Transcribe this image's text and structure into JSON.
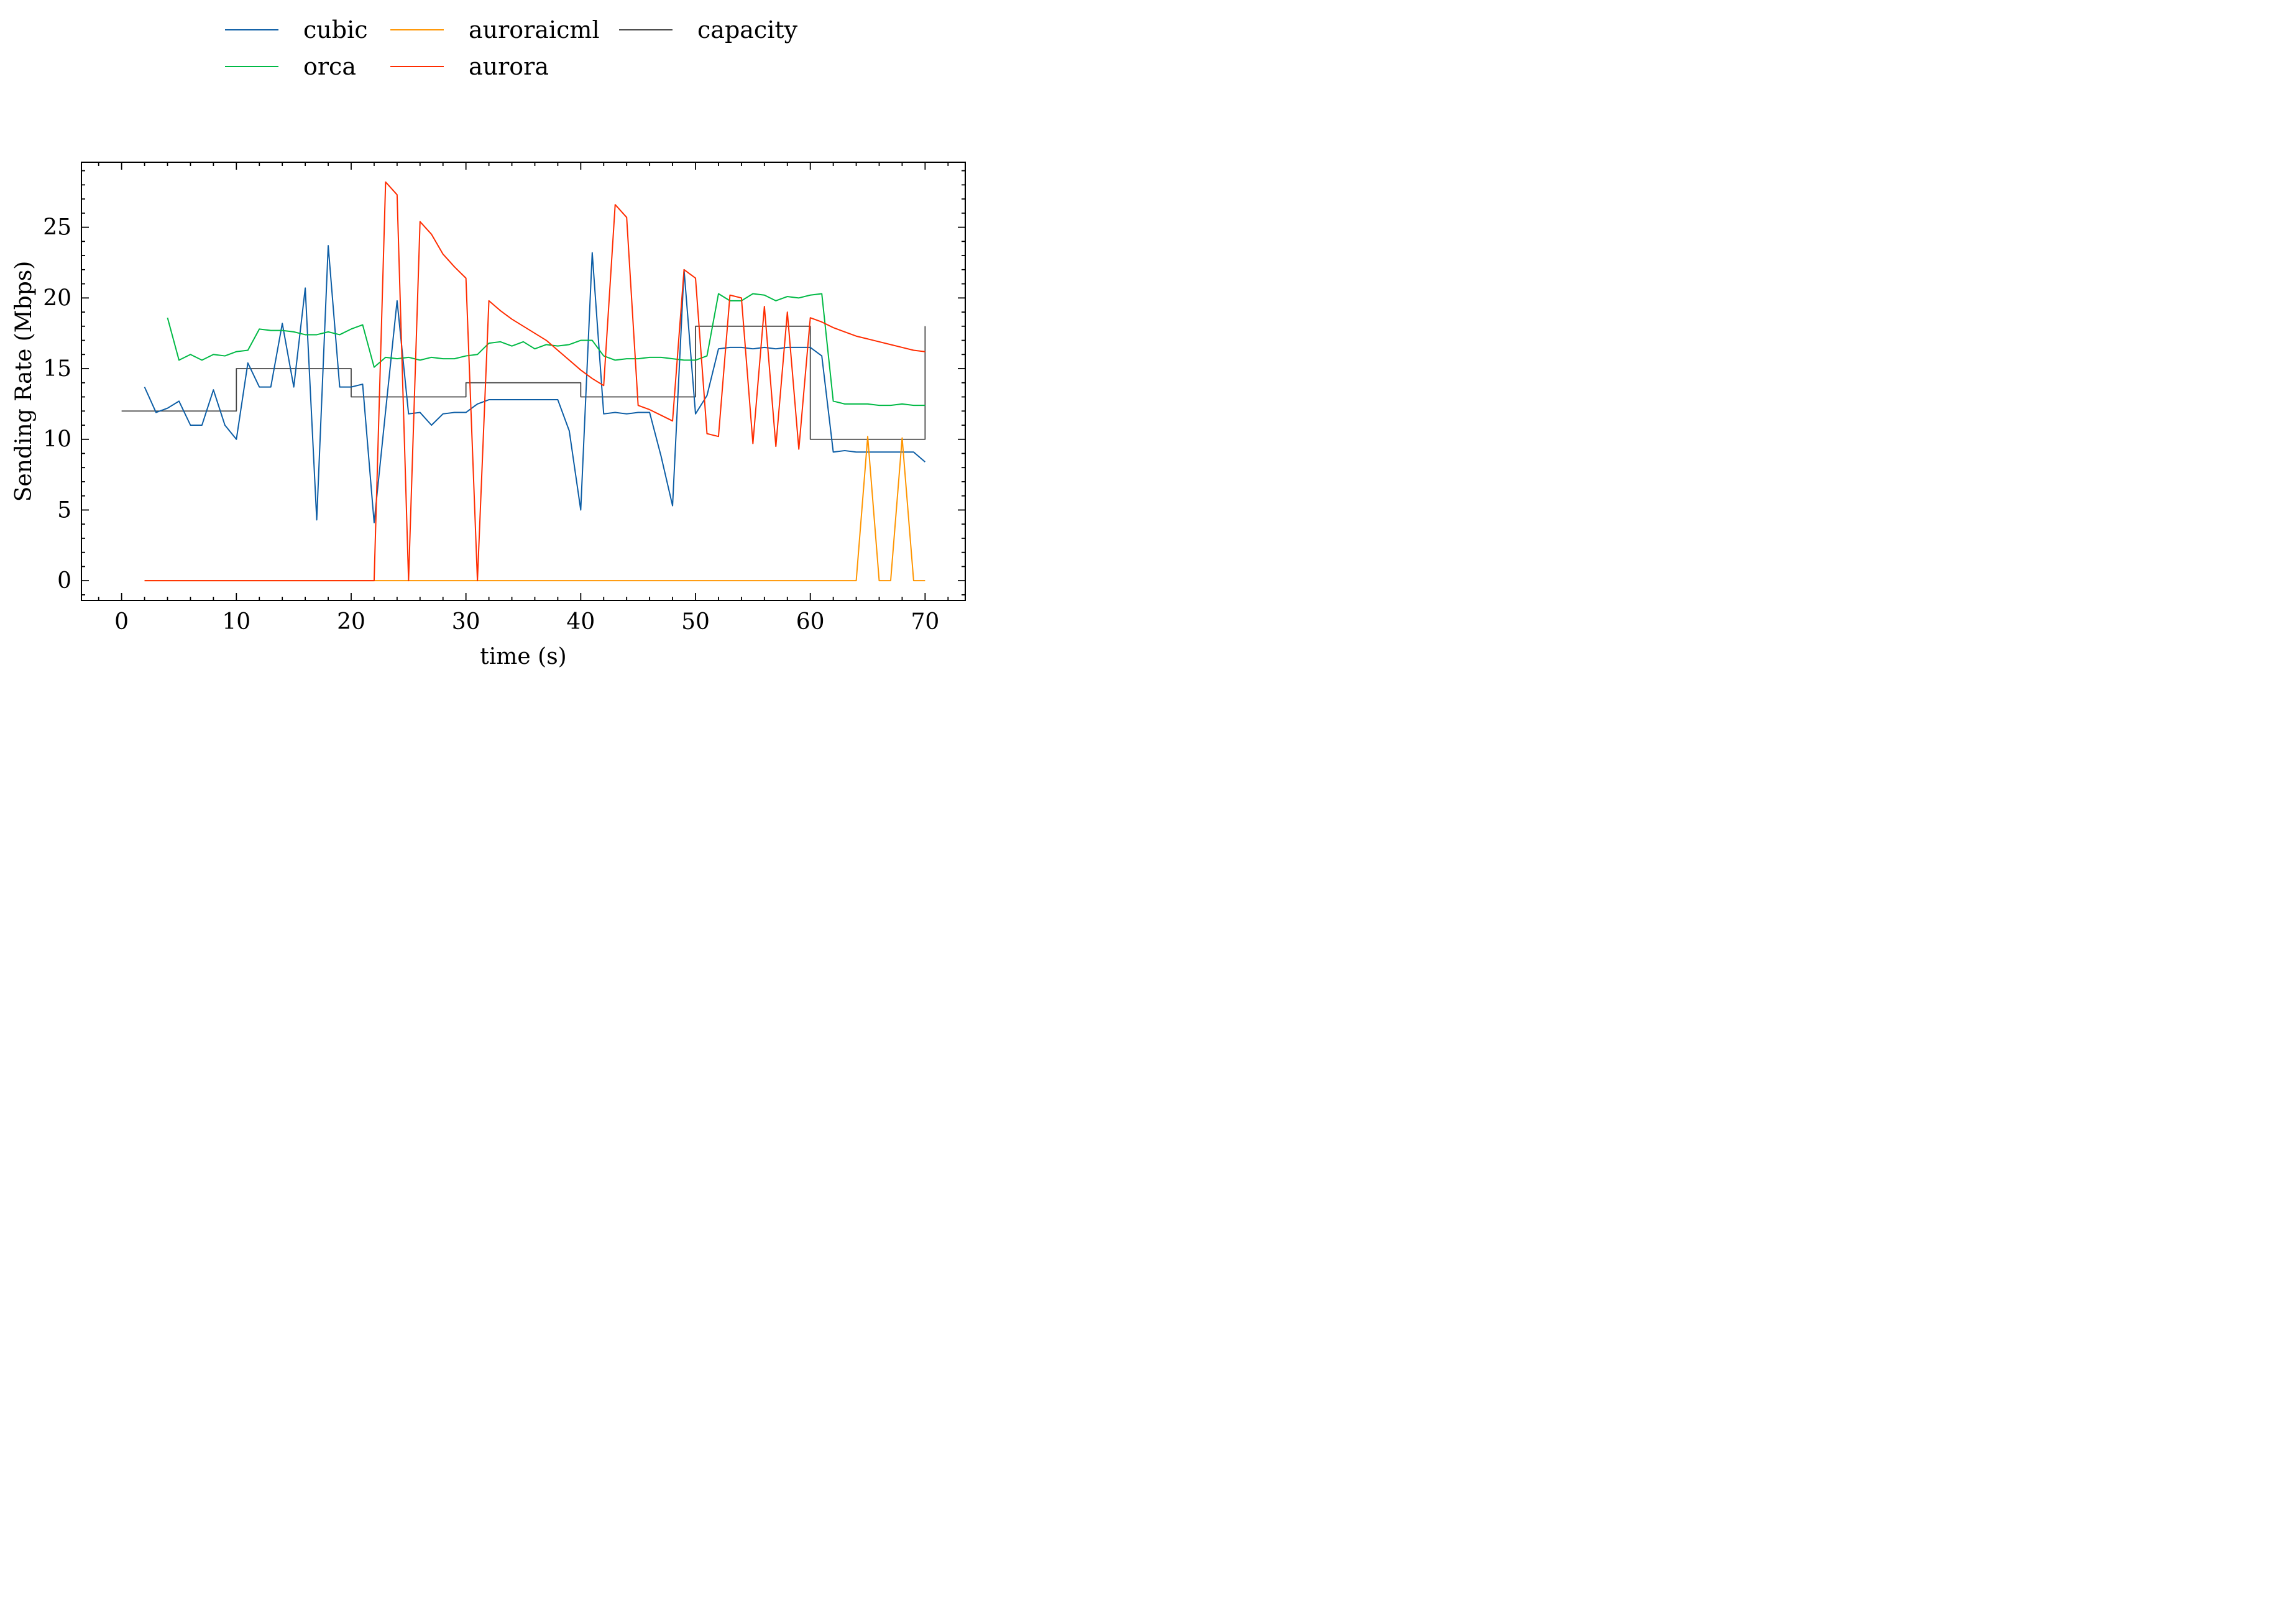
{
  "chart_data": {
    "type": "line",
    "title": "",
    "xlabel": "time (s)",
    "ylabel": "Sending Rate (Mbps)",
    "xlim": [
      -3.5,
      73.5
    ],
    "ylim": [
      -1.4,
      29.6
    ],
    "xticks": [
      0,
      10,
      20,
      30,
      40,
      50,
      60,
      70
    ],
    "xtick_labels": [
      "0",
      "10",
      "20",
      "30",
      "40",
      "50",
      "60",
      "70"
    ],
    "yticks": [
      0,
      5,
      10,
      15,
      20,
      25
    ],
    "ytick_labels": [
      "0",
      "5",
      "10",
      "15",
      "20",
      "25"
    ],
    "xminor_step": 2,
    "yminor_step": 1,
    "grid": false,
    "legend_position": "top-center, above plot",
    "series": [
      {
        "name": "cubic",
        "color": "#0C5DA5",
        "x": [
          2,
          3,
          4,
          5,
          6,
          7,
          8,
          9,
          10,
          11,
          12,
          13,
          14,
          15,
          16,
          17,
          18,
          19,
          20,
          21,
          22,
          23,
          24,
          25,
          26,
          27,
          28,
          29,
          30,
          31,
          32,
          33,
          34,
          35,
          36,
          37,
          38,
          39,
          40,
          41,
          42,
          43,
          44,
          45,
          46,
          47,
          48,
          49,
          50,
          51,
          52,
          53,
          54,
          55,
          56,
          57,
          58,
          59,
          60,
          61,
          62,
          63,
          64,
          65,
          66,
          67,
          68,
          69,
          70
        ],
        "y": [
          13.7,
          11.9,
          12.2,
          12.7,
          11.0,
          11.0,
          13.5,
          11.0,
          10.0,
          15.4,
          13.7,
          13.7,
          18.2,
          13.7,
          20.7,
          4.3,
          23.7,
          13.7,
          13.7,
          13.9,
          4.1,
          12.0,
          19.8,
          11.8,
          11.9,
          11.0,
          11.8,
          11.9,
          11.9,
          12.5,
          12.8,
          12.8,
          12.8,
          12.8,
          12.8,
          12.8,
          12.8,
          10.6,
          5.0,
          23.2,
          11.8,
          11.9,
          11.8,
          11.9,
          11.9,
          8.8,
          5.3,
          22.0,
          11.8,
          13.1,
          16.4,
          16.5,
          16.5,
          16.4,
          16.5,
          16.4,
          16.5,
          16.5,
          16.5,
          15.9,
          9.1,
          9.2,
          9.1,
          9.1,
          9.1,
          9.1,
          9.1,
          9.1,
          8.4
        ]
      },
      {
        "name": "orca",
        "color": "#00B945",
        "x": [
          4,
          5,
          6,
          7,
          8,
          9,
          10,
          11,
          12,
          13,
          14,
          15,
          16,
          17,
          18,
          19,
          20,
          21,
          22,
          23,
          24,
          25,
          26,
          27,
          28,
          29,
          30,
          31,
          32,
          33,
          34,
          35,
          36,
          37,
          38,
          39,
          40,
          41,
          42,
          43,
          44,
          45,
          46,
          47,
          48,
          49,
          50,
          51,
          52,
          53,
          54,
          55,
          56,
          57,
          58,
          59,
          60,
          61,
          62,
          63,
          64,
          65,
          66,
          67,
          68,
          69,
          70
        ],
        "y": [
          18.6,
          15.6,
          16.0,
          15.6,
          16.0,
          15.9,
          16.2,
          16.3,
          17.8,
          17.7,
          17.7,
          17.6,
          17.4,
          17.4,
          17.6,
          17.4,
          17.8,
          18.1,
          15.1,
          15.8,
          15.7,
          15.8,
          15.6,
          15.8,
          15.7,
          15.7,
          15.9,
          16.0,
          16.8,
          16.9,
          16.6,
          16.9,
          16.4,
          16.7,
          16.6,
          16.7,
          17.0,
          17.0,
          15.9,
          15.6,
          15.7,
          15.7,
          15.8,
          15.8,
          15.7,
          15.6,
          15.6,
          15.9,
          20.3,
          19.8,
          19.8,
          20.3,
          20.2,
          19.8,
          20.1,
          20.0,
          20.2,
          20.3,
          12.7,
          12.5,
          12.5,
          12.5,
          12.4,
          12.4,
          12.5,
          12.4,
          12.4
        ]
      },
      {
        "name": "auroraicml",
        "color": "#FF9500",
        "x": [
          2,
          22,
          64,
          65,
          66,
          67,
          68,
          69,
          70
        ],
        "y": [
          0,
          0,
          0,
          10.2,
          0,
          0,
          10.1,
          0,
          0
        ]
      },
      {
        "name": "aurora",
        "color": "#FF2C00",
        "x": [
          2,
          22,
          23,
          24,
          25,
          26,
          27,
          28,
          29,
          30,
          31,
          32,
          33,
          34,
          35,
          36,
          37,
          38,
          39,
          40,
          41,
          42,
          43,
          44,
          45,
          46,
          47,
          48,
          49,
          50,
          51,
          52,
          53,
          54,
          55,
          56,
          57,
          58,
          59,
          60,
          61,
          62,
          63,
          64,
          65,
          66,
          67,
          68,
          69,
          70
        ],
        "y": [
          0,
          0,
          28.2,
          27.3,
          0,
          25.4,
          24.5,
          23.1,
          22.2,
          21.4,
          0,
          19.8,
          19.1,
          18.5,
          18.0,
          17.5,
          17.0,
          16.3,
          15.6,
          14.9,
          14.3,
          13.8,
          26.6,
          25.7,
          12.4,
          12.1,
          11.7,
          11.3,
          22.0,
          21.4,
          10.4,
          10.2,
          20.2,
          20.0,
          9.7,
          19.4,
          9.5,
          19.0,
          9.3,
          18.6,
          18.3,
          17.9,
          17.6,
          17.3,
          17.1,
          16.9,
          16.7,
          16.5,
          16.3,
          16.2
        ]
      },
      {
        "name": "capacity",
        "color": "#474747",
        "step": true,
        "x": [
          0,
          10,
          10,
          20,
          20,
          30,
          30,
          40,
          40,
          50,
          50,
          60,
          60,
          70,
          70
        ],
        "y": [
          12,
          12,
          15,
          15,
          13,
          13,
          14,
          14,
          13,
          13,
          18,
          18,
          10,
          10,
          18
        ]
      }
    ]
  }
}
